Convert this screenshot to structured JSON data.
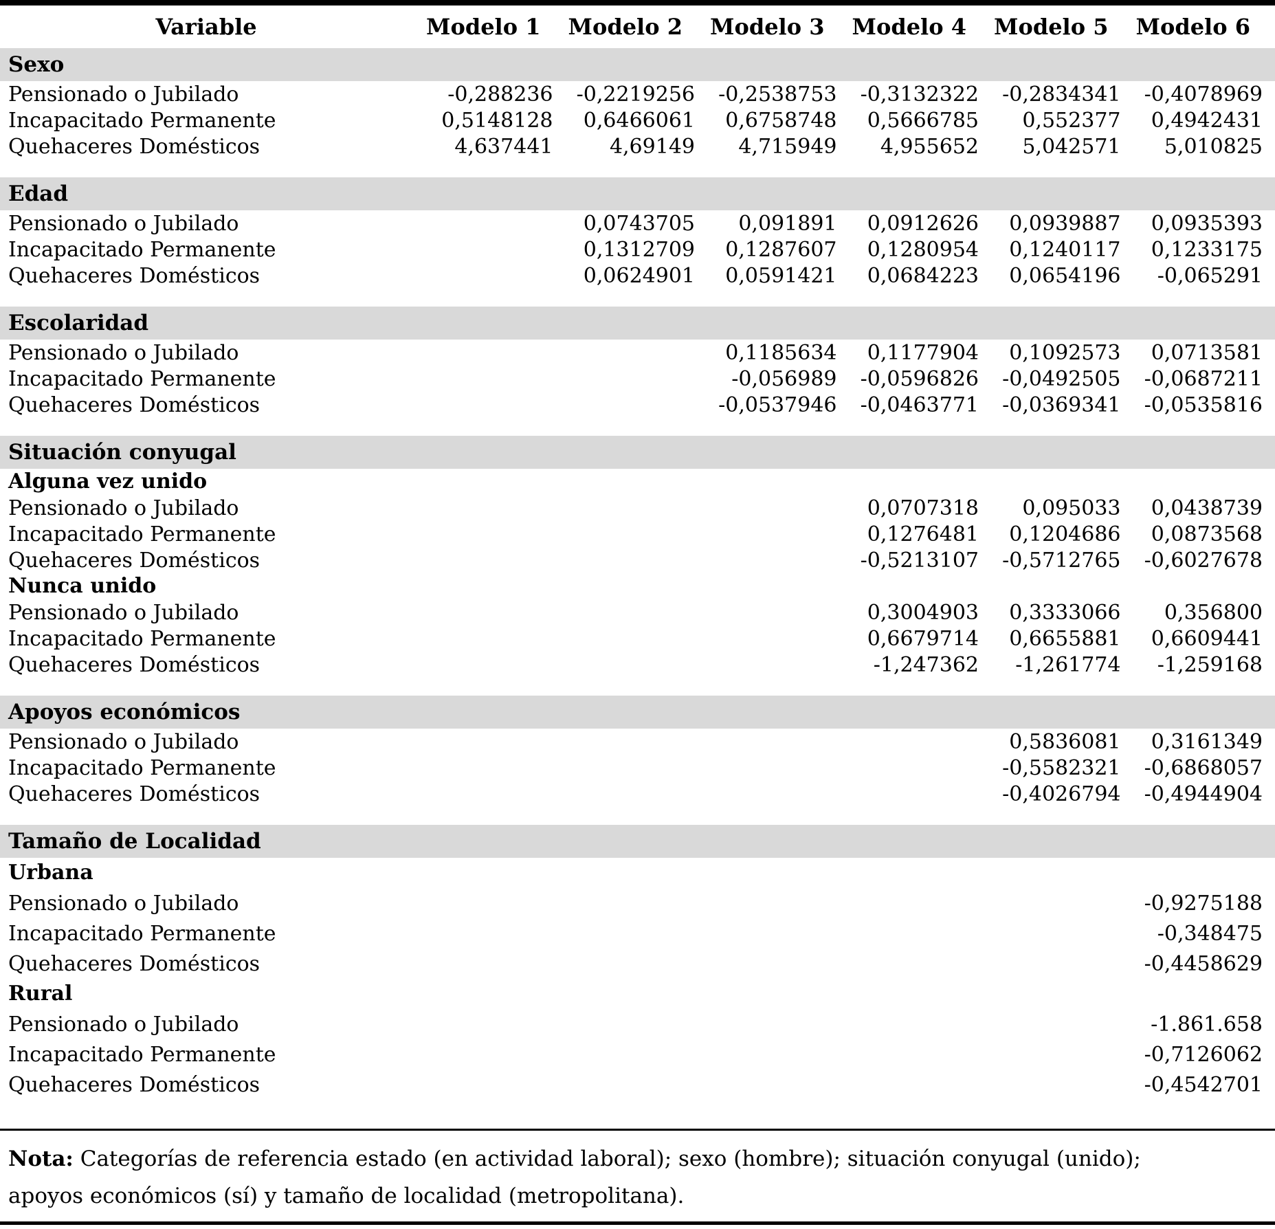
{
  "colors": {
    "band_background": "#d9d9d9",
    "rule": "#000000",
    "text": "#000000",
    "page_background": "#ffffff"
  },
  "table": {
    "columns": [
      "Variable",
      "Modelo 1",
      "Modelo 2",
      "Modelo 3",
      "Modelo 4",
      "Modelo 5",
      "Modelo 6"
    ],
    "sections": [
      {
        "title": "Sexo",
        "spacious": false,
        "groups": [
          {
            "label": "",
            "rows": [
              {
                "label": "Pensionado o Jubilado",
                "values": [
                  "-0,288236",
                  "-0,2219256",
                  "-0,2538753",
                  "-0,3132322",
                  "-0,2834341",
                  "-0,4078969"
                ]
              },
              {
                "label": "Incapacitado Permanente",
                "values": [
                  "0,5148128",
                  "0,6466061",
                  "0,6758748",
                  "0,5666785",
                  "0,552377",
                  "0,4942431"
                ]
              },
              {
                "label": "Quehaceres Domésticos",
                "values": [
                  "4,637441",
                  "4,69149",
                  "4,715949",
                  "4,955652",
                  "5,042571",
                  "5,010825"
                ]
              }
            ]
          }
        ]
      },
      {
        "title": "Edad",
        "spacious": false,
        "groups": [
          {
            "label": "",
            "rows": [
              {
                "label": "Pensionado o Jubilado",
                "values": [
                  "",
                  "0,0743705",
                  "0,091891",
                  "0,0912626",
                  "0,0939887",
                  "0,0935393"
                ]
              },
              {
                "label": "Incapacitado Permanente",
                "values": [
                  "",
                  "0,1312709",
                  "0,1287607",
                  "0,1280954",
                  "0,1240117",
                  "0,1233175"
                ]
              },
              {
                "label": "Quehaceres Domésticos",
                "values": [
                  "",
                  "0,0624901",
                  "0,0591421",
                  "0,0684223",
                  "0,0654196",
                  "-0,065291"
                ]
              }
            ]
          }
        ]
      },
      {
        "title": "Escolaridad",
        "spacious": false,
        "groups": [
          {
            "label": "",
            "rows": [
              {
                "label": "Pensionado o Jubilado",
                "values": [
                  "",
                  "",
                  "0,1185634",
                  "0,1177904",
                  "0,1092573",
                  "0,0713581"
                ]
              },
              {
                "label": "Incapacitado Permanente",
                "values": [
                  "",
                  "",
                  "-0,056989",
                  "-0,0596826",
                  "-0,0492505",
                  "-0,0687211"
                ]
              },
              {
                "label": "Quehaceres Domésticos",
                "values": [
                  "",
                  "",
                  "-0,0537946",
                  "-0,0463771",
                  "-0,0369341",
                  "-0,0535816"
                ]
              }
            ]
          }
        ]
      },
      {
        "title": "Situación conyugal",
        "spacious": false,
        "groups": [
          {
            "label": "Alguna vez unido",
            "rows": [
              {
                "label": "Pensionado o Jubilado",
                "values": [
                  "",
                  "",
                  "",
                  "0,0707318",
                  "0,095033",
                  "0,0438739"
                ]
              },
              {
                "label": "Incapacitado Permanente",
                "values": [
                  "",
                  "",
                  "",
                  "0,1276481",
                  "0,1204686",
                  "0,0873568"
                ]
              },
              {
                "label": "Quehaceres Domésticos",
                "values": [
                  "",
                  "",
                  "",
                  "-0,5213107",
                  "-0,5712765",
                  "-0,6027678"
                ]
              }
            ]
          },
          {
            "label": "Nunca unido",
            "rows": [
              {
                "label": "Pensionado o Jubilado",
                "values": [
                  "",
                  "",
                  "",
                  "0,3004903",
                  "0,3333066",
                  "0,356800"
                ]
              },
              {
                "label": "Incapacitado Permanente",
                "values": [
                  "",
                  "",
                  "",
                  "0,6679714",
                  "0,6655881",
                  "0,6609441"
                ]
              },
              {
                "label": "Quehaceres Domésticos",
                "values": [
                  "",
                  "",
                  "",
                  "-1,247362",
                  "-1,261774",
                  "-1,259168"
                ]
              }
            ]
          }
        ]
      },
      {
        "title": "Apoyos económicos",
        "spacious": false,
        "groups": [
          {
            "label": "",
            "rows": [
              {
                "label": "Pensionado o Jubilado",
                "values": [
                  "",
                  "",
                  "",
                  "",
                  "0,5836081",
                  "0,3161349"
                ]
              },
              {
                "label": "Incapacitado Permanente",
                "values": [
                  "",
                  "",
                  "",
                  "",
                  "-0,5582321",
                  "-0,6868057"
                ]
              },
              {
                "label": "Quehaceres Domésticos",
                "values": [
                  "",
                  "",
                  "",
                  "",
                  "-0,4026794",
                  "-0,4944904"
                ]
              }
            ]
          }
        ]
      },
      {
        "title": "Tamaño de Localidad",
        "spacious": true,
        "groups": [
          {
            "label": "Urbana",
            "rows": [
              {
                "label": "Pensionado o Jubilado",
                "values": [
                  "",
                  "",
                  "",
                  "",
                  "",
                  "-0,9275188"
                ]
              },
              {
                "label": "Incapacitado Permanente",
                "values": [
                  "",
                  "",
                  "",
                  "",
                  "",
                  "-0,348475"
                ]
              },
              {
                "label": "Quehaceres Domésticos",
                "values": [
                  "",
                  "",
                  "",
                  "",
                  "",
                  "-0,4458629"
                ]
              }
            ]
          },
          {
            "label": "Rural",
            "rows": [
              {
                "label": "Pensionado o Jubilado",
                "values": [
                  "",
                  "",
                  "",
                  "",
                  "",
                  "-1.861.658"
                ]
              },
              {
                "label": "Incapacitado Permanente",
                "values": [
                  "",
                  "",
                  "",
                  "",
                  "",
                  "-0,7126062"
                ]
              },
              {
                "label": "Quehaceres Domésticos",
                "values": [
                  "",
                  "",
                  "",
                  "",
                  "",
                  "-0,4542701"
                ]
              }
            ]
          }
        ]
      }
    ],
    "note": {
      "label": "Nota:",
      "line1": "Categorías de referencia estado (en actividad laboral);  sexo (hombre); situación conyugal (unido);",
      "line2": "apoyos económicos (sí) y tamaño de localidad (metropolitana)."
    }
  }
}
